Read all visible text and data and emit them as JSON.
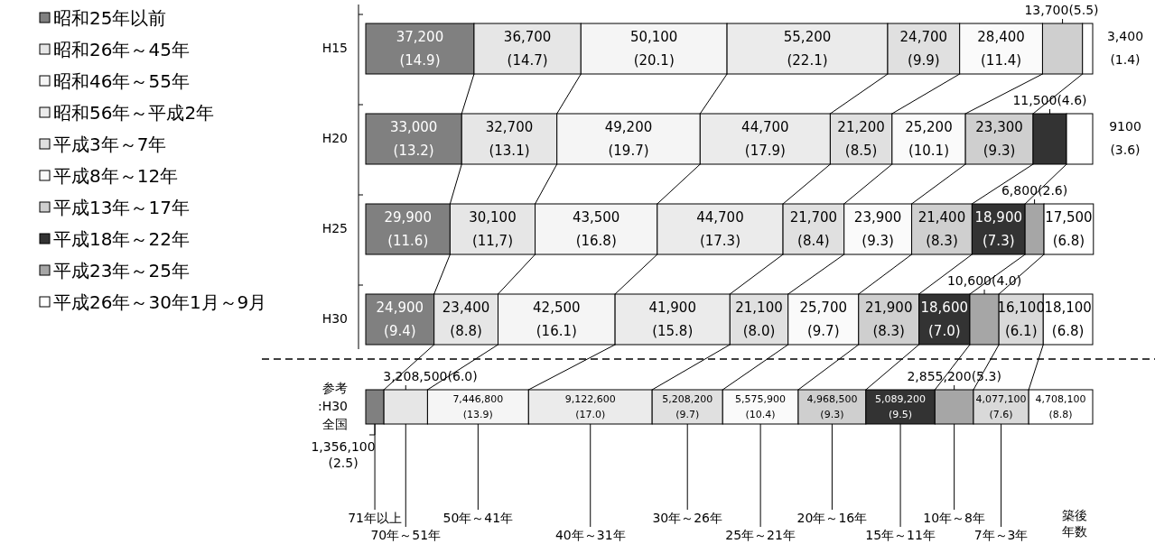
{
  "chart_data": {
    "type": "bar",
    "orientation": "horizontal",
    "stacked": true,
    "legend": "left",
    "categories": [
      "H15",
      "H20",
      "H25",
      "H30",
      "参考 :H30 全国"
    ],
    "series": [
      {
        "name": "昭和25年以前",
        "color": "#808080",
        "values": [
          14.9,
          13.2,
          11.6,
          9.4,
          2.5
        ],
        "value_labels": [
          "37,200 (14.9)",
          "33,000 (13.2)",
          "29,900 (11.6)",
          "24,900 (9.4)",
          "1,356,100 (2.5)"
        ]
      },
      {
        "name": "昭和26年～45年",
        "color": "#e6e6e6",
        "values": [
          14.7,
          13.1,
          11.7,
          8.8,
          6.0
        ],
        "value_labels": [
          "36,700 (14.7)",
          "32,700 (13.1)",
          "30,100 (11,7)",
          "23,400 (8.8)",
          "3,208,500(6.0)"
        ]
      },
      {
        "name": "昭和46年～55年",
        "color": "#f5f5f5",
        "values": [
          20.1,
          19.7,
          16.8,
          16.1,
          13.9
        ],
        "value_labels": [
          "50,100 (20.1)",
          "49,200 (19.7)",
          "43,500 (16.8)",
          "42,500 (16.1)",
          "7,446,800 (13.9)"
        ]
      },
      {
        "name": "昭和56年～平成2年",
        "color": "#ebebeb",
        "values": [
          22.1,
          17.9,
          17.3,
          15.8,
          17.0
        ],
        "value_labels": [
          "55,200 (22.1)",
          "44,700 (17.9)",
          "44,700 (17.3)",
          "41,900 (15.8)",
          "9,122,600 (17.0)"
        ]
      },
      {
        "name": "平成3年～7年",
        "color": "#e0e0e0",
        "values": [
          9.9,
          8.5,
          8.4,
          8.0,
          9.7
        ],
        "value_labels": [
          "24,700 (9.9)",
          "21,200 (8.5)",
          "21,700 (8.4)",
          "21,100 (8.0)",
          "5,208,200 (9.7)"
        ]
      },
      {
        "name": "平成8年～12年",
        "color": "#fafafa",
        "values": [
          11.4,
          10.1,
          9.3,
          9.7,
          10.4
        ],
        "value_labels": [
          "28,400 (11.4)",
          "25,200 (10.1)",
          "23,900 (9.3)",
          "25,700 (9.7)",
          "5,575,900 (10.4)"
        ]
      },
      {
        "name": "平成13年～17年",
        "color": "#cfcfcf",
        "values": [
          5.5,
          9.3,
          8.3,
          8.3,
          9.3
        ],
        "value_labels": [
          "13,700(5.5)",
          "23,300 (9.3)",
          "21,400 (8.3)",
          "21,900 (8.3)",
          "4,968,500 (9.3)"
        ]
      },
      {
        "name": "平成18年～22年",
        "color": "#333333",
        "values": [
          null,
          4.6,
          7.3,
          7.0,
          9.5
        ],
        "value_labels": [
          null,
          "11,500(4.6)",
          "18,900 (7.3)",
          "18,600 (7.0)",
          "5,089,200 (9.5)"
        ]
      },
      {
        "name": "平成23年～25年",
        "color": "#a6a6a6",
        "values": [
          null,
          null,
          2.6,
          4.0,
          5.3
        ],
        "value_labels": [
          null,
          null,
          "6,800(2.6)",
          "10,600(4.0)",
          "2,855,200(5.3)"
        ]
      },
      {
        "color": "#d9d9d9",
        "values": [
          null,
          null,
          null,
          6.1,
          7.6
        ],
        "value_labels": [
          null,
          null,
          null,
          "16,100 (6.1)",
          "4,077,100 (7.6)"
        ]
      },
      {
        "name": "平成26年～30年1月～9月",
        "color": "#ffffff",
        "values": [
          1.4,
          3.6,
          6.8,
          6.8,
          8.8
        ],
        "value_labels": [
          "3,400 (1.4)",
          "9100 (3.6)",
          "17,500 (6.8)",
          "18,100 (6.8)",
          "4,708,100 (8.8)"
        ]
      }
    ],
    "annotations": [
      "71年以上",
      "70年～51年",
      "50年～41年",
      "40年～31年",
      "30年～26年",
      "25年～21年",
      "20年～16年",
      "15年～11年",
      "10年～8年",
      "7年～3年",
      "築後年数"
    ]
  }
}
